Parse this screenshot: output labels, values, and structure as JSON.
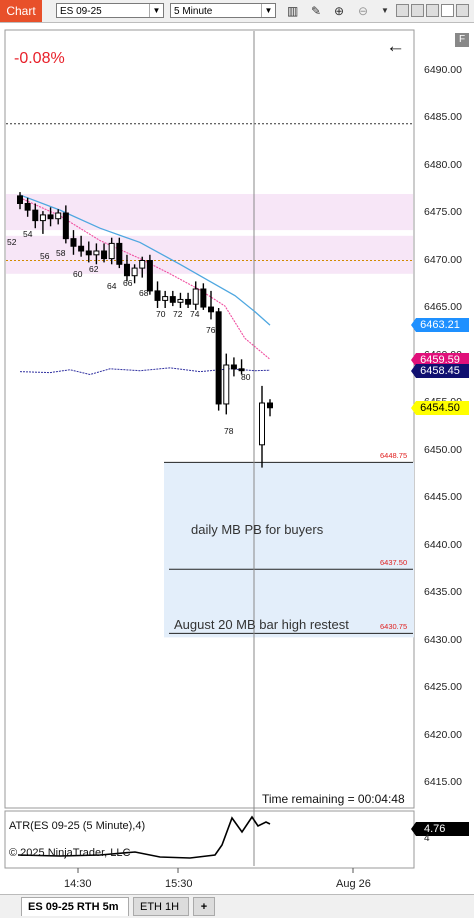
{
  "toolbar": {
    "chart_tab": "Chart",
    "instrument": "ES 09-25",
    "interval": "5 Minute",
    "icons": [
      "bar-style-icon",
      "draw-pencil-icon",
      "zoom-in-icon",
      "zoom-out-icon",
      "dropdown-icon"
    ]
  },
  "chart": {
    "percent_change": "-0.08%",
    "price_axis_labels": [
      "6490.00",
      "6485.00",
      "6480.00",
      "6475.00",
      "6470.00",
      "6465.00",
      "6460.00",
      "6455.00",
      "6450.00",
      "6445.00",
      "6440.00",
      "6435.00",
      "6430.00",
      "6425.00",
      "6420.00",
      "6415.00"
    ],
    "price_boxes": [
      {
        "value": "6463.21",
        "bg": "#1e90ff",
        "fg": "#ffffff"
      },
      {
        "value": "6459.59",
        "bg": "#e0107a",
        "fg": "#ffffff"
      },
      {
        "value": "6458.45",
        "bg": "#101070",
        "fg": "#ffffff"
      },
      {
        "value": "6454.50",
        "bg": "#ffff00",
        "fg": "#000000"
      }
    ],
    "levels": [
      {
        "label": "6448.75",
        "price": 6448.75
      },
      {
        "label": "6437.50",
        "price": 6437.5
      },
      {
        "label": "6430.75",
        "price": 6430.75
      }
    ],
    "notes": {
      "zone1": "daily MB PB for buyers",
      "zone2": "August 20  MB bar high restest"
    },
    "bar_numbers": [
      "52",
      "54",
      "56",
      "58",
      "60",
      "62",
      "64",
      "66",
      "68",
      "70",
      "72",
      "74",
      "76",
      "78",
      "80"
    ],
    "time_remaining": "Time remaining = 00:04:48"
  },
  "chart_data": {
    "type": "candlestick",
    "instrument": "ES 09-25",
    "interval": "5 Minute",
    "ylim": [
      6411,
      6494
    ],
    "bars": [
      {
        "o": 6476.8,
        "h": 6477.2,
        "l": 6475.4,
        "c": 6476.0
      },
      {
        "o": 6476.0,
        "h": 6476.6,
        "l": 6474.6,
        "c": 6475.3
      },
      {
        "o": 6475.3,
        "h": 6476.0,
        "l": 6473.4,
        "c": 6474.2
      },
      {
        "o": 6474.2,
        "h": 6475.2,
        "l": 6472.8,
        "c": 6474.8
      },
      {
        "o": 6474.8,
        "h": 6475.6,
        "l": 6473.6,
        "c": 6474.4
      },
      {
        "o": 6474.4,
        "h": 6475.4,
        "l": 6473.8,
        "c": 6475.0
      },
      {
        "o": 6475.0,
        "h": 6475.8,
        "l": 6471.8,
        "c": 6472.3
      },
      {
        "o": 6472.3,
        "h": 6473.2,
        "l": 6470.6,
        "c": 6471.5
      },
      {
        "o": 6471.5,
        "h": 6472.6,
        "l": 6470.4,
        "c": 6471.0
      },
      {
        "o": 6471.0,
        "h": 6472.0,
        "l": 6469.8,
        "c": 6470.6
      },
      {
        "o": 6470.6,
        "h": 6471.8,
        "l": 6469.6,
        "c": 6471.0
      },
      {
        "o": 6471.0,
        "h": 6471.8,
        "l": 6469.8,
        "c": 6470.2
      },
      {
        "o": 6470.2,
        "h": 6472.4,
        "l": 6469.6,
        "c": 6471.8
      },
      {
        "o": 6471.8,
        "h": 6472.4,
        "l": 6469.2,
        "c": 6469.6
      },
      {
        "o": 6469.6,
        "h": 6470.6,
        "l": 6467.8,
        "c": 6468.4
      },
      {
        "o": 6468.4,
        "h": 6469.6,
        "l": 6467.6,
        "c": 6469.2
      },
      {
        "o": 6469.2,
        "h": 6470.4,
        "l": 6468.2,
        "c": 6470.0
      },
      {
        "o": 6470.0,
        "h": 6470.6,
        "l": 6466.4,
        "c": 6466.8
      },
      {
        "o": 6466.8,
        "h": 6467.8,
        "l": 6465.0,
        "c": 6465.8
      },
      {
        "o": 6465.8,
        "h": 6466.8,
        "l": 6465.0,
        "c": 6466.2
      },
      {
        "o": 6466.2,
        "h": 6466.8,
        "l": 6465.2,
        "c": 6465.6
      },
      {
        "o": 6465.6,
        "h": 6466.6,
        "l": 6465.0,
        "c": 6465.9
      },
      {
        "o": 6465.9,
        "h": 6466.6,
        "l": 6465.0,
        "c": 6465.4
      },
      {
        "o": 6465.4,
        "h": 6467.8,
        "l": 6464.8,
        "c": 6467.0
      },
      {
        "o": 6467.0,
        "h": 6467.6,
        "l": 6464.8,
        "c": 6465.1
      },
      {
        "o": 6465.1,
        "h": 6466.8,
        "l": 6463.8,
        "c": 6464.6
      },
      {
        "o": 6464.6,
        "h": 6465.0,
        "l": 6454.2,
        "c": 6454.9
      },
      {
        "o": 6454.9,
        "h": 6460.2,
        "l": 6453.8,
        "c": 6459.0
      },
      {
        "o": 6459.0,
        "h": 6459.8,
        "l": 6457.8,
        "c": 6458.6
      },
      {
        "o": 6458.6,
        "h": 6459.6,
        "l": 6458.0,
        "c": 6458.4
      },
      {
        "o": 6450.6,
        "h": 6456.8,
        "l": 6448.2,
        "c": 6455.0
      },
      {
        "o": 6455.0,
        "h": 6455.4,
        "l": 6453.6,
        "c": 6454.5
      }
    ],
    "zones": [
      [
        6468.6,
        6472.6
      ],
      [
        6473.2,
        6477.0
      ]
    ],
    "ref_lines": [
      6484.4,
      6470.0
    ],
    "ema_fast_end": 6459.59,
    "ema_slow_end": 6463.21,
    "vwap_end": 6458.45,
    "atr": {
      "label": "ATR(ES 09-25 (5 Minute),4)",
      "value": "4.76",
      "axis_tick": "4"
    },
    "x_ticks": [
      "14:30",
      "15:30",
      "Aug 26"
    ]
  },
  "footer": {
    "atr_label": "ATR(ES 09-25 (5 Minute),4)",
    "atr_value": "4.76",
    "atr_tick": "4",
    "copyright": "© 2025 NinjaTrader, LLC",
    "time_labels": [
      "14:30",
      "15:30",
      "Aug 26"
    ],
    "tabs": [
      "ES 09-25 RTH 5m",
      "ETH 1H",
      "+"
    ]
  }
}
